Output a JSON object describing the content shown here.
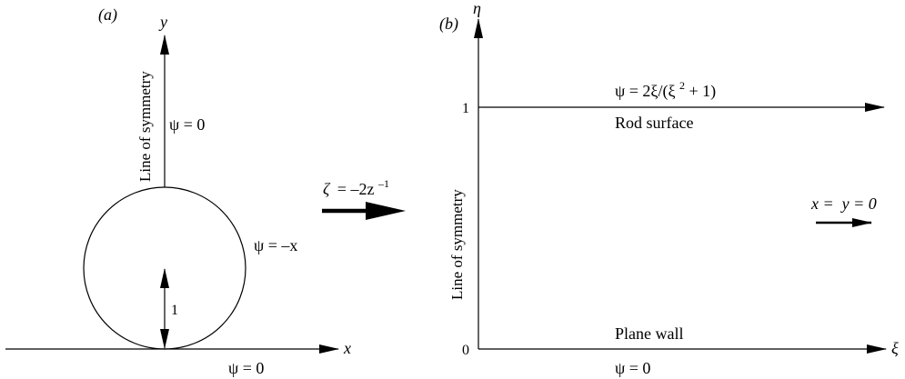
{
  "panel_a": {
    "panel_label": "(a)",
    "y_axis_label": "y",
    "x_axis_label": "x",
    "symmetry_label": "Line of symmetry",
    "psi_symmetry": "ψ = 0",
    "psi_circle": "ψ = –x",
    "psi_wall": "ψ = 0",
    "radius_label": "1"
  },
  "transform": {
    "lhs": "ζ",
    "rhs_main": "= –2z",
    "rhs_exp": "–1"
  },
  "panel_b": {
    "panel_label": "(b)",
    "eta_label": "η",
    "xi_label": "ξ",
    "symmetry_label": "Line of symmetry",
    "tick_one": "1",
    "tick_zero": "0",
    "rod_psi_prefix": "ψ = 2ξ/(ξ",
    "rod_psi_exp": "2",
    "rod_psi_suffix": " + 1)",
    "rod_label": "Rod surface",
    "wall_label": "Plane wall",
    "wall_psi": "ψ = 0",
    "infinity_label": "x =  y = 0"
  }
}
